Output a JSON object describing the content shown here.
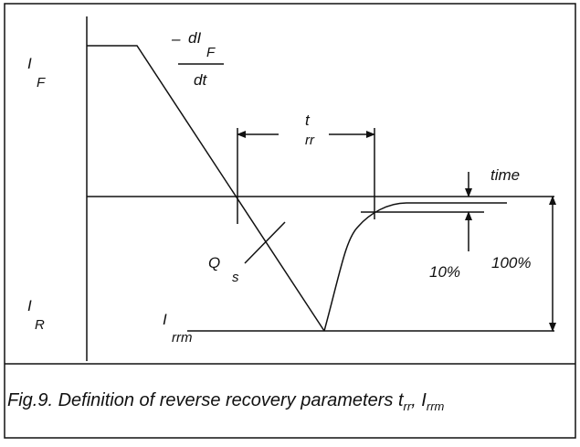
{
  "labels": {
    "i_f": {
      "main": "I",
      "sub": "F"
    },
    "didt": {
      "minus": "–",
      "numerator": "dI",
      "sub": "F",
      "denominator": "dt"
    },
    "trr": {
      "main": "t",
      "sub": "rr"
    },
    "time": "time",
    "qs": {
      "main": "Q",
      "sub": "s"
    },
    "ten_percent": "10%",
    "hundred_percent": "100%",
    "i_r": {
      "main": "I",
      "sub": "R"
    },
    "irrm": {
      "main": "I",
      "sub": "rrm"
    }
  },
  "caption": {
    "text": "Fig.9.  Definition of reverse recovery parameters t",
    "sub1": "rr",
    "sep": ", I",
    "sub2": "rrm"
  }
}
